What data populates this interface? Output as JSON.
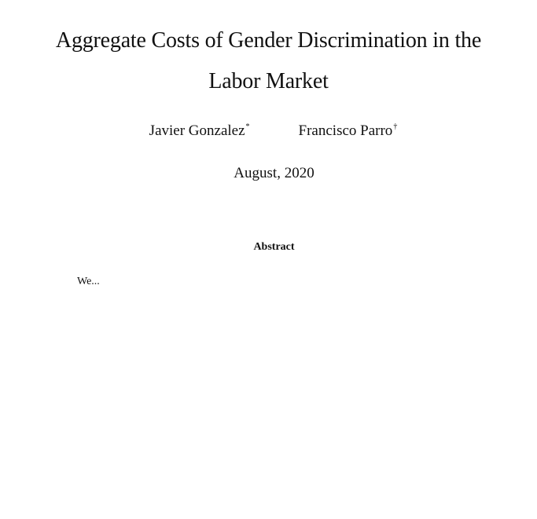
{
  "paper": {
    "title_lines": [
      "Aggregate Costs of Gender Discrimination in the",
      "Labor Market"
    ],
    "authors": [
      {
        "name": "Javier Gonzalez",
        "mark": "*"
      },
      {
        "name": "Francisco Parro",
        "mark": "†"
      }
    ],
    "date": "August, 2020",
    "abstract": {
      "heading": "Abstract",
      "body": "We..."
    }
  }
}
